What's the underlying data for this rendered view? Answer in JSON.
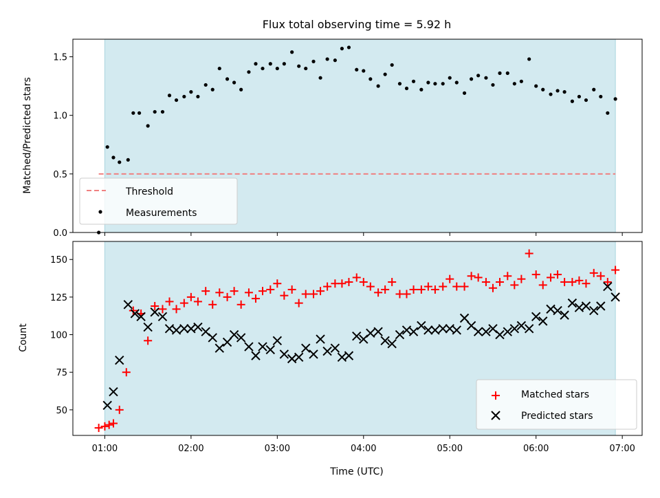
{
  "chart_data": [
    {
      "type": "scatter",
      "title": "Flux total observing time = 5.92 h",
      "xlabel": "",
      "ylabel": "Matched/Predicted stars",
      "xlim": [
        0.63,
        7.23
      ],
      "ylim": [
        0,
        1.65
      ],
      "y_ticks": [
        0.0,
        0.5,
        1.0,
        1.5
      ],
      "y_tick_labels": [
        "0.0",
        "0.5",
        "1.0",
        "1.5"
      ],
      "x_ticks": [
        1,
        2,
        3,
        4,
        5,
        6,
        7
      ],
      "show_x_tick_labels": false,
      "grid": false,
      "shaded_region": {
        "x": [
          1.0,
          6.92
        ],
        "color": "#add8e6",
        "alpha": 0.5
      },
      "threshold": {
        "name": "Threshold",
        "y": 0.5,
        "x": [
          0.93,
          6.92
        ],
        "color": "#f08080",
        "style": "dashed"
      },
      "series": [
        {
          "name": "Measurements",
          "color": "#000000",
          "marker": "dot",
          "x": [
            0.93,
            1.03,
            1.1,
            1.17,
            1.27,
            1.33,
            1.4,
            1.5,
            1.58,
            1.67,
            1.75,
            1.83,
            1.92,
            2.0,
            2.08,
            2.17,
            2.25,
            2.33,
            2.42,
            2.5,
            2.58,
            2.67,
            2.75,
            2.83,
            2.92,
            3.0,
            3.08,
            3.17,
            3.25,
            3.33,
            3.42,
            3.5,
            3.58,
            3.67,
            3.75,
            3.83,
            3.92,
            4.0,
            4.08,
            4.17,
            4.25,
            4.33,
            4.42,
            4.5,
            4.58,
            4.67,
            4.75,
            4.83,
            4.92,
            5.0,
            5.08,
            5.17,
            5.25,
            5.33,
            5.42,
            5.5,
            5.58,
            5.67,
            5.75,
            5.83,
            5.92,
            6.0,
            6.08,
            6.17,
            6.25,
            6.33,
            6.42,
            6.5,
            6.58,
            6.67,
            6.75,
            6.83,
            6.92
          ],
          "y": [
            0.0,
            0.73,
            0.64,
            0.6,
            0.62,
            1.02,
            1.02,
            0.91,
            1.03,
            1.03,
            1.17,
            1.13,
            1.16,
            1.2,
            1.16,
            1.26,
            1.22,
            1.4,
            1.31,
            1.28,
            1.22,
            1.37,
            1.44,
            1.4,
            1.44,
            1.4,
            1.44,
            1.54,
            1.42,
            1.4,
            1.46,
            1.32,
            1.48,
            1.47,
            1.57,
            1.58,
            1.39,
            1.38,
            1.31,
            1.25,
            1.35,
            1.43,
            1.27,
            1.23,
            1.29,
            1.22,
            1.28,
            1.27,
            1.27,
            1.32,
            1.28,
            1.19,
            1.31,
            1.34,
            1.32,
            1.26,
            1.36,
            1.36,
            1.27,
            1.29,
            1.48,
            1.25,
            1.22,
            1.18,
            1.21,
            1.2,
            1.12,
            1.16,
            1.13,
            1.22,
            1.16,
            1.02,
            1.14
          ]
        }
      ],
      "legend": {
        "position": "lower-left",
        "entries": [
          "Threshold",
          "Measurements"
        ]
      }
    },
    {
      "type": "scatter",
      "title": "",
      "xlabel": "Time (UTC)",
      "ylabel": "Count",
      "xlim": [
        0.63,
        7.23
      ],
      "ylim": [
        33,
        162
      ],
      "y_ticks": [
        50,
        75,
        100,
        125,
        150
      ],
      "y_tick_labels": [
        "50",
        "75",
        "100",
        "125",
        "150"
      ],
      "x_ticks": [
        1,
        2,
        3,
        4,
        5,
        6,
        7
      ],
      "x_tick_labels": [
        "01:00",
        "02:00",
        "03:00",
        "04:00",
        "05:00",
        "06:00",
        "07:00"
      ],
      "grid": false,
      "shaded_region": {
        "x": [
          1.0,
          6.92
        ],
        "color": "#add8e6",
        "alpha": 0.5
      },
      "series": [
        {
          "name": "Matched stars",
          "color": "#ff0000",
          "marker": "plus",
          "x": [
            0.93,
            1.0,
            1.05,
            1.1,
            1.17,
            1.25,
            1.33,
            1.42,
            1.5,
            1.58,
            1.67,
            1.75,
            1.83,
            1.92,
            2.0,
            2.08,
            2.17,
            2.25,
            2.33,
            2.42,
            2.5,
            2.58,
            2.67,
            2.75,
            2.83,
            2.92,
            3.0,
            3.08,
            3.17,
            3.25,
            3.33,
            3.42,
            3.5,
            3.58,
            3.67,
            3.75,
            3.83,
            3.92,
            4.0,
            4.08,
            4.17,
            4.25,
            4.33,
            4.42,
            4.5,
            4.58,
            4.67,
            4.75,
            4.83,
            4.92,
            5.0,
            5.08,
            5.17,
            5.25,
            5.33,
            5.42,
            5.5,
            5.58,
            5.67,
            5.75,
            5.83,
            5.92,
            6.0,
            6.08,
            6.17,
            6.25,
            6.33,
            6.42,
            6.5,
            6.58,
            6.67,
            6.75,
            6.83,
            6.92
          ],
          "y": [
            38,
            39,
            40,
            41,
            50,
            75,
            116,
            114,
            96,
            119,
            117,
            122,
            117,
            121,
            125,
            122,
            129,
            120,
            128,
            125,
            129,
            120,
            128,
            124,
            129,
            130,
            134,
            126,
            130,
            121,
            127,
            127,
            129,
            132,
            134,
            134,
            135,
            138,
            135,
            132,
            128,
            130,
            135,
            127,
            127,
            130,
            130,
            132,
            130,
            132,
            137,
            132,
            132,
            139,
            138,
            135,
            131,
            135,
            139,
            133,
            137,
            154,
            140,
            133,
            138,
            140,
            135,
            135,
            136,
            134,
            141,
            139,
            135,
            143
          ]
        },
        {
          "name": "Predicted stars",
          "color": "#000000",
          "marker": "x",
          "x": [
            1.03,
            1.1,
            1.17,
            1.27,
            1.35,
            1.42,
            1.5,
            1.58,
            1.67,
            1.75,
            1.83,
            1.92,
            2.0,
            2.08,
            2.17,
            2.25,
            2.33,
            2.42,
            2.5,
            2.58,
            2.67,
            2.75,
            2.83,
            2.92,
            3.0,
            3.08,
            3.17,
            3.25,
            3.33,
            3.42,
            3.5,
            3.58,
            3.67,
            3.75,
            3.83,
            3.92,
            4.0,
            4.08,
            4.17,
            4.25,
            4.33,
            4.42,
            4.5,
            4.58,
            4.67,
            4.75,
            4.83,
            4.92,
            5.0,
            5.08,
            5.17,
            5.25,
            5.33,
            5.42,
            5.5,
            5.58,
            5.67,
            5.75,
            5.83,
            5.92,
            6.0,
            6.08,
            6.17,
            6.25,
            6.33,
            6.42,
            6.5,
            6.58,
            6.67,
            6.75,
            6.83,
            6.92
          ],
          "y": [
            53,
            62,
            83,
            120,
            114,
            112,
            105,
            115,
            112,
            104,
            103,
            104,
            104,
            105,
            102,
            98,
            91,
            95,
            100,
            98,
            92,
            86,
            92,
            90,
            96,
            87,
            84,
            85,
            91,
            87,
            97,
            89,
            91,
            85,
            86,
            99,
            97,
            101,
            102,
            96,
            94,
            100,
            103,
            102,
            106,
            103,
            103,
            104,
            104,
            103,
            111,
            106,
            102,
            102,
            104,
            100,
            102,
            104,
            106,
            104,
            112,
            109,
            117,
            116,
            113,
            121,
            118,
            119,
            116,
            119,
            132,
            125
          ]
        }
      ],
      "legend": {
        "position": "lower-right",
        "entries": [
          "Matched stars",
          "Predicted stars"
        ]
      }
    }
  ]
}
